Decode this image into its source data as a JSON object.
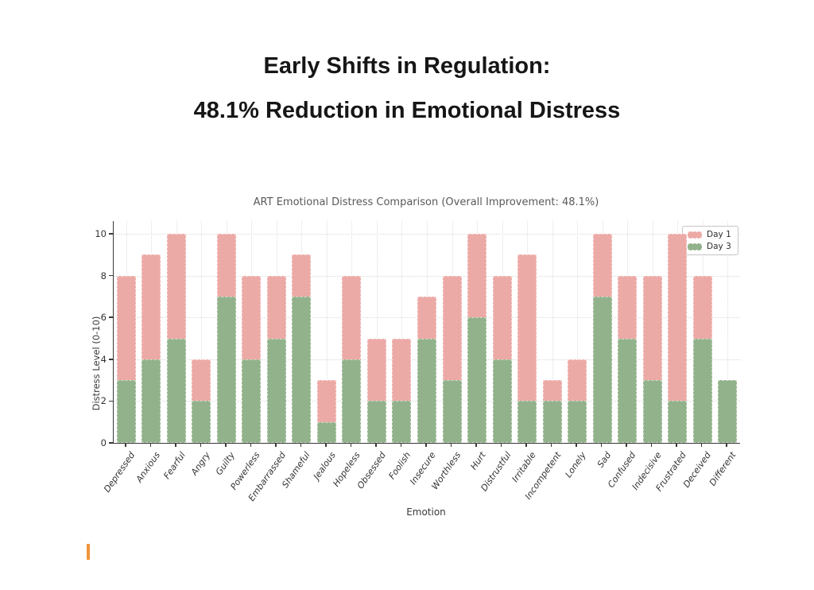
{
  "heading": {
    "line1": "Early Shifts in Regulation:",
    "line2": "48.1% Reduction in Emotional Distress"
  },
  "chart_data": {
    "type": "bar",
    "title": "ART Emotional Distress Comparison (Overall Improvement: 48.1%)",
    "xlabel": "Emotion",
    "ylabel": "Distress Level (0-10)",
    "ylim": [
      0,
      10.6
    ],
    "yticks": [
      0,
      2,
      4,
      6,
      8,
      10
    ],
    "grid": true,
    "legend_position": "upper right",
    "bar_style": "Day 3 bars drawn in front of Day 1 bars (overlaid, not stacked)",
    "categories": [
      "Depressed",
      "Anxious",
      "Fearful",
      "Angry",
      "Guilty",
      "Powerless",
      "Embarrassed",
      "Shameful",
      "Jealous",
      "Hopeless",
      "Obsessed",
      "Foolish",
      "Insecure",
      "Worthless",
      "Hurt",
      "Distrustful",
      "Irritable",
      "Incompetent",
      "Lonely",
      "Sad",
      "Confused",
      "Indecisive",
      "Frustrated",
      "Deceived",
      "Different"
    ],
    "series": [
      {
        "name": "Day 1",
        "color": "#ecaaa7",
        "values": [
          8,
          9,
          10,
          4,
          10,
          8,
          8,
          9,
          3,
          8,
          5,
          5,
          7,
          8,
          10,
          8,
          9,
          3,
          4,
          10,
          8,
          8,
          10,
          8,
          3
        ]
      },
      {
        "name": "Day 3",
        "color": "#92b28b",
        "values": [
          3,
          4,
          5,
          2,
          7,
          4,
          5,
          7,
          1,
          4,
          2,
          2,
          5,
          3,
          6,
          4,
          2,
          2,
          2,
          7,
          5,
          3,
          2,
          5,
          3
        ]
      }
    ],
    "overall_improvement_pct": 48.1
  },
  "decorations": {
    "cursor_color": "#f0953c"
  }
}
